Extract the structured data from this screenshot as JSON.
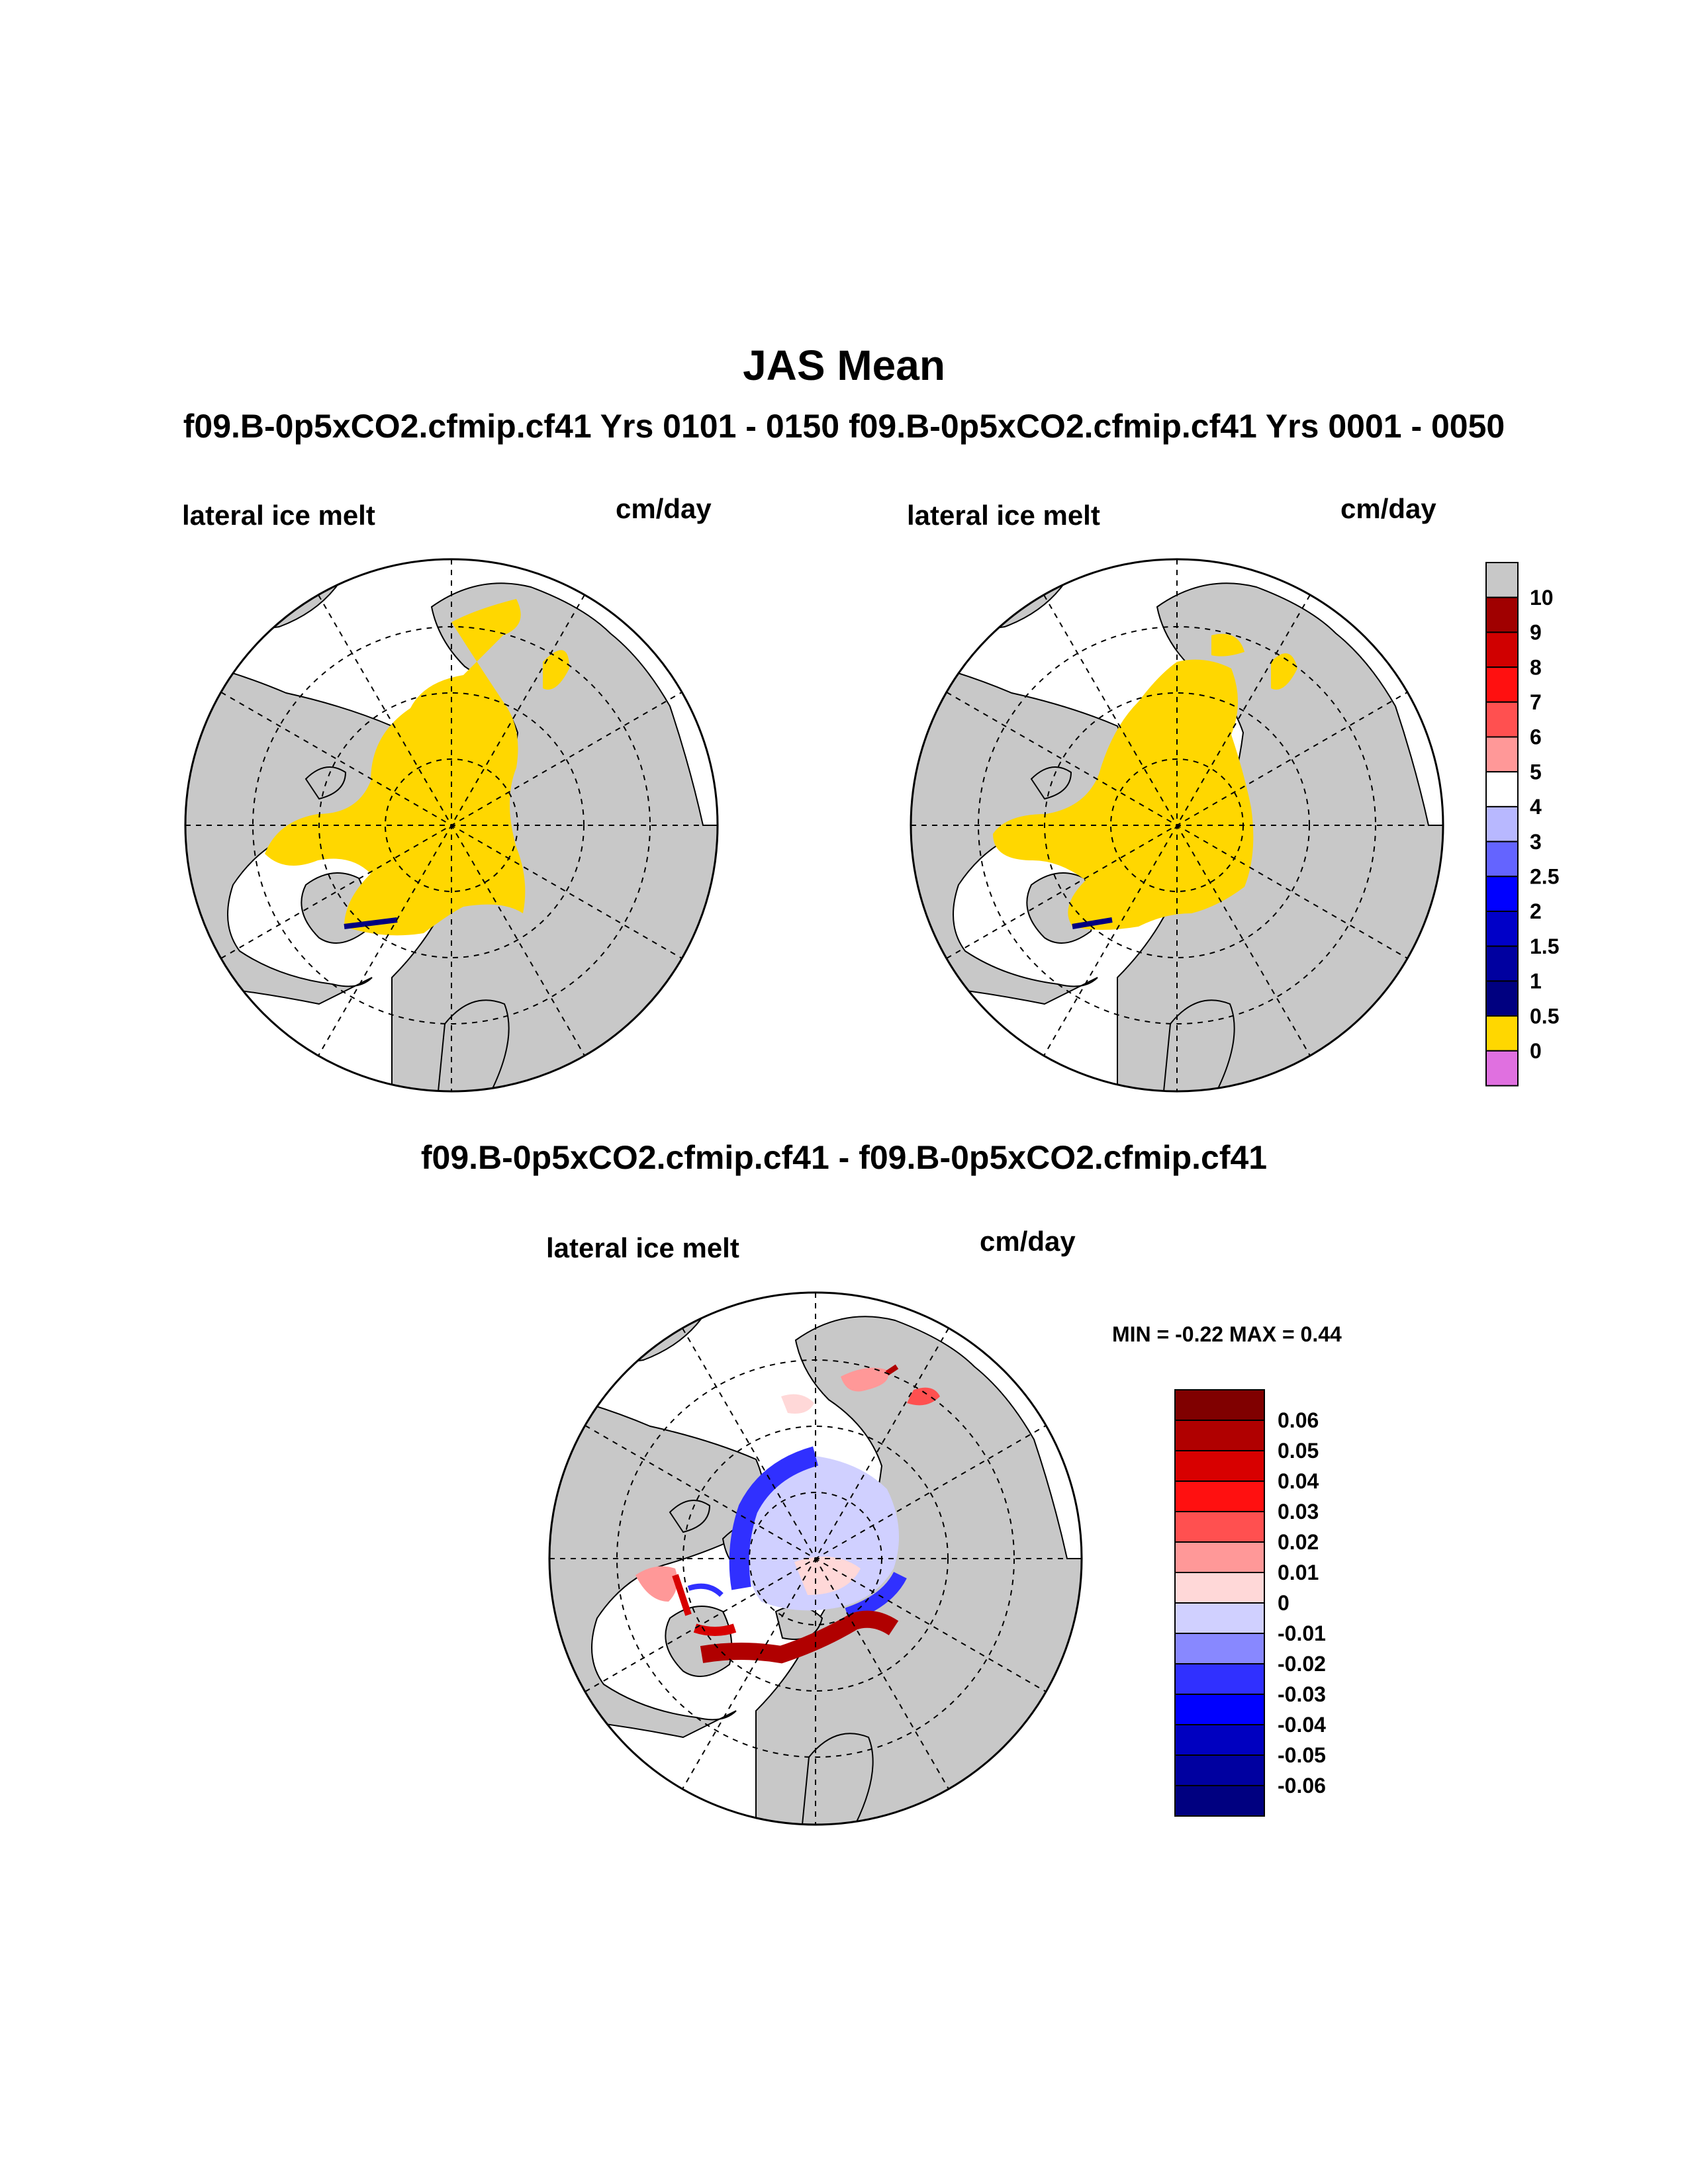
{
  "title": "JAS Mean",
  "subtitle": "f09.B-0p5xCO2.cfmip.cf41  Yrs 0101 - 0150 f09.B-0p5xCO2.cfmip.cf41  Yrs 0001 - 0050",
  "diff_title": "f09.B-0p5xCO2.cfmip.cf41 - f09.B-0p5xCO2.cfmip.cf41",
  "panels": [
    {
      "label": "lateral ice melt",
      "unit": "cm/day"
    },
    {
      "label": "lateral ice melt",
      "unit": "cm/day"
    },
    {
      "label": "lateral ice melt",
      "unit": "cm/day"
    }
  ],
  "diff_stats": {
    "text": "MIN =  -0.22 MAX =   0.44",
    "min": -0.22,
    "max": 0.44
  },
  "colorbar_top": {
    "labels": [
      "10",
      "9",
      "8",
      "7",
      "6",
      "5",
      "4",
      "3",
      "2.5",
      "2",
      "1.5",
      "1",
      "0.5",
      "0"
    ],
    "colors": [
      "#c8c8c8",
      "#a00000",
      "#d00000",
      "#ff1010",
      "#ff5050",
      "#ff9898",
      "#ffffff",
      "#b8b8ff",
      "#6464ff",
      "#0000ff",
      "#0000c8",
      "#0000a0",
      "#000080",
      "#ffd700",
      "#e070e0"
    ]
  },
  "colorbar_diff": {
    "labels": [
      "0.06",
      "0.05",
      "0.04",
      "0.03",
      "0.02",
      "0.01",
      "0",
      "-0.01",
      "-0.02",
      "-0.03",
      "-0.04",
      "-0.05",
      "-0.06"
    ],
    "colors": [
      "#800000",
      "#b00000",
      "#d80000",
      "#ff1010",
      "#ff5050",
      "#ff9898",
      "#ffd8d8",
      "#d0d0ff",
      "#8888ff",
      "#3030ff",
      "#0000ff",
      "#0000c0",
      "#0000a0",
      "#000080"
    ]
  },
  "colors": {
    "land": "#c8c8c8",
    "ice_low": "#ffd700",
    "ocean": "#ffffff"
  }
}
